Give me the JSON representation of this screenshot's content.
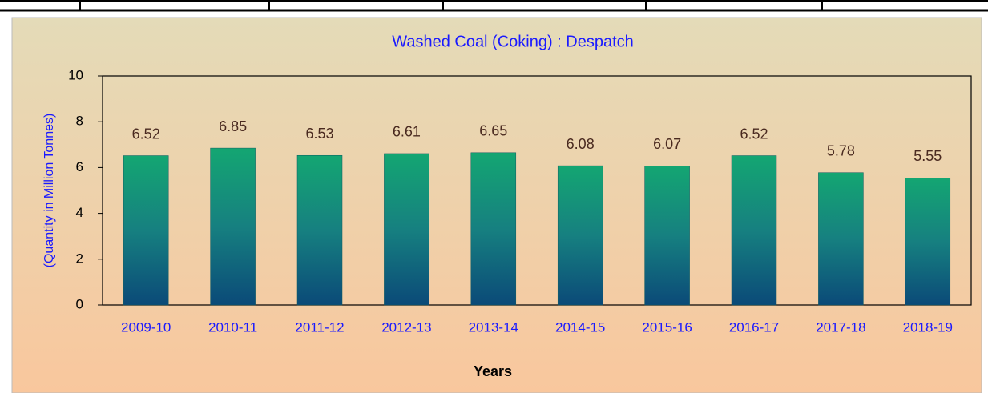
{
  "chart_data": {
    "type": "bar",
    "title": "Washed Coal (Coking) : Despatch",
    "y_label": "(Quantity in Million Tonnes)",
    "x_label": "Years",
    "categories": [
      "2009-10",
      "2010-11",
      "2011-12",
      "2012-13",
      "2013-14",
      "2014-15",
      "2015-16",
      "2016-17",
      "2017-18",
      "2018-19"
    ],
    "values": [
      6.52,
      6.85,
      6.53,
      6.61,
      6.65,
      6.08,
      6.07,
      6.52,
      5.78,
      5.55
    ],
    "ylim": [
      0,
      10
    ],
    "yticks": [
      0,
      2,
      4,
      6,
      8,
      10
    ],
    "grid": false
  }
}
